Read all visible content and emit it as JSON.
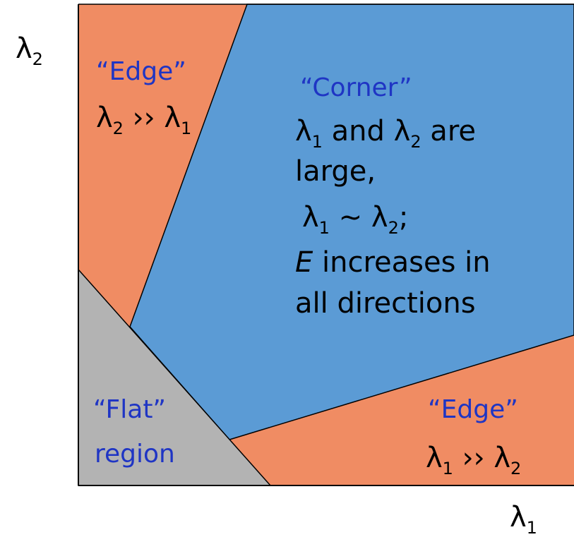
{
  "axes": {
    "x_symbol": "λ",
    "x_sub": "1",
    "y_symbol": "λ",
    "y_sub": "2"
  },
  "regions": {
    "edge_top": {
      "label": "“Edge”",
      "rel_sym_a": "λ",
      "rel_sub_a": "2",
      "rel_op": " ›› ",
      "rel_sym_b": "λ",
      "rel_sub_b": "1"
    },
    "corner": {
      "label": "“Corner”",
      "l1_sym_a": "λ",
      "l1_sub_a": "1",
      "l1_mid": " and ",
      "l1_sym_b": "λ",
      "l1_sub_b": "2",
      "l1_end": " are",
      "line2": "large,",
      "l3_sym_a": "λ",
      "l3_sub_a": "1",
      "l3_op": " ~ ",
      "l3_sym_b": "λ",
      "l3_sub_b": "2",
      "l3_end": ";",
      "l4_var": "E",
      "l4_rest": " increases in",
      "line5": "all directions"
    },
    "flat": {
      "line1": "“Flat”",
      "line2": "region"
    },
    "edge_bottom": {
      "label": "“Edge”",
      "rel_sym_a": "λ",
      "rel_sub_a": "1",
      "rel_op": " ›› ",
      "rel_sym_b": "λ",
      "rel_sub_b": "2"
    }
  },
  "colors": {
    "edge": "#f08c63",
    "corner": "#5b9bd5",
    "flat": "#b3b3b3",
    "label_blue": "#1f35c4",
    "text": "#000000"
  }
}
